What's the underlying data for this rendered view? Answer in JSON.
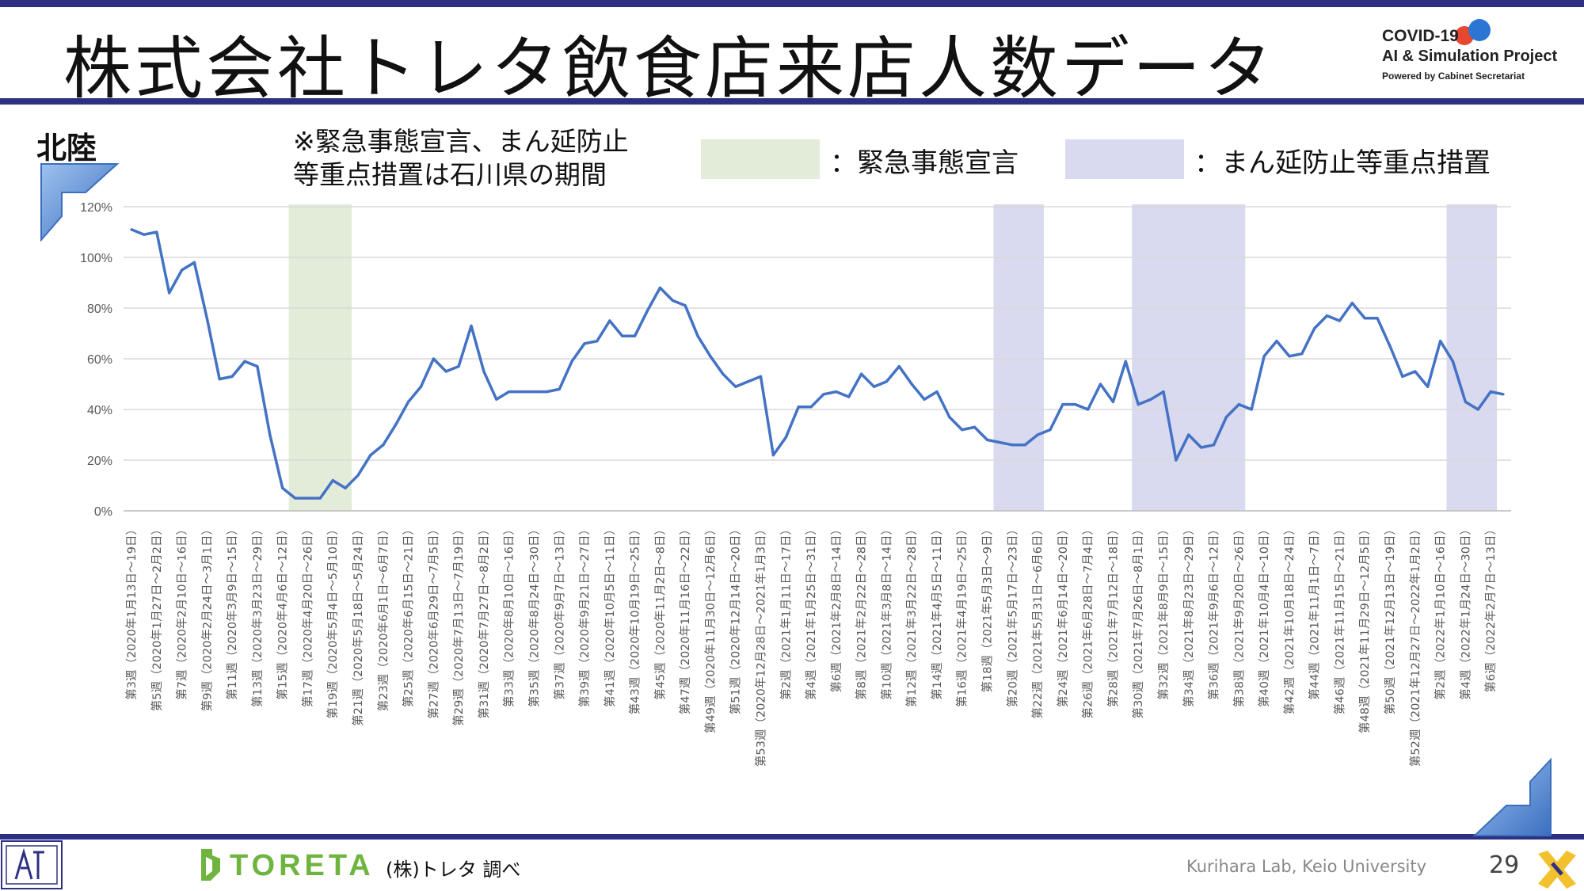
{
  "slide": {
    "title": "株式会社トレタ飲食店来店人数データ",
    "region": "北陸",
    "note_line1": "※緊急事態宣言、まん延防止",
    "note_line2": "等重点措置は石川県の期間",
    "legend_emergency": "：緊急事態宣言",
    "legend_manen": "：まん延防止等重点措置",
    "footer_note": "(株)トレタ 調べ",
    "footer_credit": "Kurihara Lab, Keio University",
    "page_number": "29",
    "company_logo_text": "TORETA",
    "project_logo": {
      "line1": "COVID-19",
      "line2": "AI & Simulation Project",
      "line3": "Powered by Cabinet Secretariat"
    }
  },
  "colors": {
    "line": "#4472c4",
    "emergency": "#e2ecd9",
    "manen": "#d9d9ef",
    "bar": "#2e3183",
    "toreta_green": "#6eb43f"
  },
  "chart_data": {
    "type": "line",
    "series": [
      {
        "values": [
          111,
          109,
          110,
          86,
          95,
          98,
          76,
          52,
          53,
          59,
          57,
          30,
          9,
          5,
          5,
          5,
          12,
          9,
          14,
          22,
          26,
          34,
          43,
          49,
          60,
          55,
          57,
          73,
          55,
          44,
          47,
          47,
          47,
          47,
          48,
          59,
          66,
          67,
          75,
          69,
          69,
          79,
          88,
          83,
          81,
          69,
          61,
          54,
          49,
          51,
          53,
          22,
          29,
          41,
          41,
          46,
          47,
          45,
          54,
          49,
          51,
          57,
          50,
          44,
          47,
          37,
          32,
          33,
          28,
          27,
          26,
          26,
          30,
          32,
          42,
          42,
          40,
          50,
          43,
          59,
          42,
          44,
          47,
          20,
          30,
          25,
          26,
          37,
          42,
          40,
          61,
          67,
          61,
          62,
          72,
          77,
          75,
          82,
          76,
          76,
          65,
          53,
          55,
          49,
          67,
          59,
          43,
          40,
          47,
          46
        ]
      }
    ],
    "y_ticks": [
      "0%",
      "20%",
      "40%",
      "60%",
      "80%",
      "100%",
      "120%"
    ],
    "ylim": [
      0,
      120
    ],
    "x_tick_labels": [
      "第3週（2020年1月13日～19日）",
      "第5週（2020年1月27日～2月2日）",
      "第7週（2020年2月10日～16日）",
      "第9週（2020年2月24日～3月1日）",
      "第11週（2020年3月9日～15日）",
      "第13週（2020年3月23日～29日）",
      "第15週（2020年4月6日～12日）",
      "第17週（2020年4月20日～26日）",
      "第19週（2020年5月4日～5月10日）",
      "第21週（2020年5月18日～5月24日）",
      "第23週（2020年6月1日～6月7日）",
      "第25週（2020年6月15日～21日）",
      "第27週（2020年6月29日～7月5日）",
      "第29週（2020年7月13日～7月19日）",
      "第31週（2020年7月27日～8月2日）",
      "第33週（2020年8月10日～16日）",
      "第35週（2020年8月24日～30日）",
      "第37週（2020年9月7日～13日）",
      "第39週（2020年9月21日～27日）",
      "第41週（2020年10月5日～11日）",
      "第43週（2020年10月19日～25日）",
      "第45週（2020年11月2日～8日）",
      "第47週（2020年11月16日～22日）",
      "第49週（2020年11月30日～12月6日）",
      "第51週（2020年12月14日～20日）",
      "第53週（2020年12月28日～2021年1月3日）",
      "第2週（2021年1月11日～17日）",
      "第4週（2021年1月25日～31日）",
      "第6週（2021年2月8日～14日）",
      "第8週（2021年2月22日～28日）",
      "第10週（2021年3月8日～14日）",
      "第12週（2021年3月22日～28日）",
      "第14週（2021年4月5日～11日）",
      "第16週（2021年4月19日～25日）",
      "第18週（2021年5月3日～9日）",
      "第20週（2021年5月17日～23日）",
      "第22週（2021年5月31日～6月6日）",
      "第24週（2021年6月14日～20日）",
      "第26週（2021年6月28日～7月4日）",
      "第28週（2021年7月12日～18日）",
      "第30週（2021年7月26日～8月1日）",
      "第32週（2021年8月9日～15日）",
      "第34週（2021年8月23日～29日）",
      "第36週（2021年9月6日～12日）",
      "第38週（2021年9月20日～26日）",
      "第40週（2021年10月4日～10日）",
      "第42週（2021年10月18日～24日）",
      "第44週（2021年11月1日～7日）",
      "第46週（2021年11月15日～21日）",
      "第48週（2021年11月29日～12月5日）",
      "第50週（2021年12月13日～19日）",
      "第52週（2021年12月27日～2022年1月2日）",
      "第2週（2022年1月10日～16日）",
      "第4週（2022年1月24日～30日）",
      "第6週（2022年2月7日～13日）"
    ],
    "shaded_periods": [
      {
        "kind": "emergency",
        "from_week_index": 13,
        "to_week_index": 17
      },
      {
        "kind": "manen",
        "from_week_index": 69,
        "to_week_index": 72
      },
      {
        "kind": "manen",
        "from_week_index": 80,
        "to_week_index": 88
      },
      {
        "kind": "manen",
        "from_week_index": 105,
        "to_week_index": 108
      }
    ],
    "grid": true,
    "legend": "top"
  }
}
